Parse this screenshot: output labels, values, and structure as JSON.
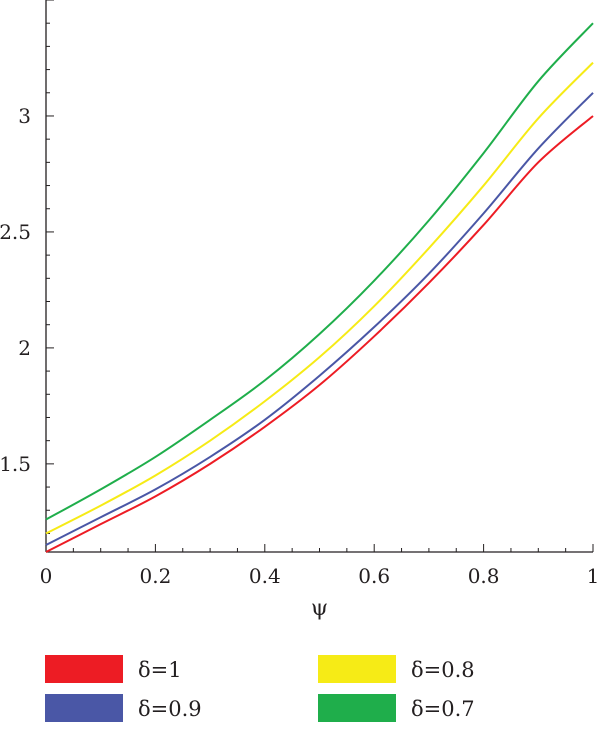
{
  "chart_data": {
    "type": "line",
    "title": "",
    "xlabel": "ψ",
    "ylabel": "",
    "xlim": [
      0,
      1
    ],
    "ylim": [
      1.12,
      3.5
    ],
    "x_ticks": [
      0,
      0.2,
      0.4,
      0.6,
      0.8,
      1
    ],
    "x_tick_labels": [
      "0",
      "0.2",
      "0.4",
      "0.6",
      "0.8",
      "1"
    ],
    "y_ticks": [
      1.5,
      2,
      2.5,
      3
    ],
    "y_tick_labels": [
      "1.5",
      "2",
      "2.5",
      "3"
    ],
    "grid": false,
    "legend": "bottom, two columns",
    "x": [
      0,
      0.1,
      0.2,
      0.3,
      0.4,
      0.5,
      0.6,
      0.7,
      0.8,
      0.9,
      1.0
    ],
    "series": [
      {
        "name": "δ=1",
        "color": "#ed1c24",
        "values": [
          1.12,
          1.24,
          1.36,
          1.5,
          1.66,
          1.84,
          2.05,
          2.28,
          2.53,
          2.8,
          3.0
        ]
      },
      {
        "name": "δ=0.9",
        "color": "#4a57a6",
        "values": [
          1.15,
          1.27,
          1.39,
          1.53,
          1.69,
          1.88,
          2.09,
          2.32,
          2.58,
          2.86,
          3.1
        ]
      },
      {
        "name": "δ=0.8",
        "color": "#f6eb16",
        "values": [
          1.2,
          1.32,
          1.45,
          1.6,
          1.77,
          1.96,
          2.18,
          2.43,
          2.7,
          2.99,
          3.23
        ]
      },
      {
        "name": "δ=0.7",
        "color": "#1fae4b",
        "values": [
          1.26,
          1.39,
          1.53,
          1.69,
          1.86,
          2.06,
          2.29,
          2.55,
          2.84,
          3.15,
          3.4
        ]
      }
    ]
  }
}
